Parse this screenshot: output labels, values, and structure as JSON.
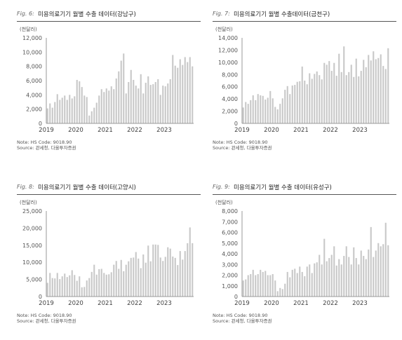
{
  "notes": {
    "note": "Note: HS Code: 9018.90",
    "source": "Source: 관세청, 다올투자증권"
  },
  "colors": {
    "bar": "#c8c8c8",
    "axis": "#999999",
    "rule": "#555555"
  },
  "chart_data": [
    {
      "type": "bar",
      "fig": "Fig. 6:",
      "title": "미용의료기기 월별 수출 데이터(강남구)",
      "unit": "(천달러)",
      "ylim": [
        0,
        12000
      ],
      "yticks": [
        "0",
        "2,000",
        "4,000",
        "6,000",
        "8,000",
        "10,000",
        "12,000"
      ],
      "xticks": [
        "2019",
        "2020",
        "2021",
        "2022",
        "2023"
      ],
      "x_start": "2019-01",
      "values": [
        2100,
        2800,
        2200,
        3000,
        4100,
        3300,
        3600,
        3900,
        3300,
        4000,
        3500,
        3800,
        6100,
        5900,
        5100,
        3900,
        3700,
        1100,
        1700,
        2200,
        2900,
        3900,
        4800,
        4400,
        4900,
        4600,
        5200,
        4800,
        6300,
        7300,
        8800,
        9800,
        4200,
        5800,
        7500,
        6100,
        5300,
        4900,
        6900,
        4200,
        5700,
        6600,
        5400,
        5500,
        5800,
        6200,
        4000,
        5300,
        5200,
        5600,
        6200,
        9600,
        8100,
        7800,
        9000,
        8200,
        9300,
        8600,
        9300,
        8000
      ]
    },
    {
      "type": "bar",
      "fig": "Fig. 7:",
      "title": "미용의료기기 월별 수출데이터(금천구)",
      "unit": "(천달러)",
      "ylim": [
        0,
        14000
      ],
      "yticks": [
        "0",
        "2,000",
        "4,000",
        "6,000",
        "8,000",
        "10,000",
        "12,000",
        "14,000"
      ],
      "xticks": [
        "2019",
        "2020",
        "2021",
        "2022",
        "2023"
      ],
      "x_start": "2019-01",
      "values": [
        2600,
        3500,
        3200,
        3800,
        4600,
        3800,
        4800,
        4600,
        4500,
        3900,
        4200,
        5300,
        4100,
        2700,
        2300,
        3200,
        4100,
        5500,
        6100,
        4800,
        6200,
        6300,
        6800,
        6900,
        9300,
        7000,
        6400,
        8200,
        7300,
        8100,
        8500,
        7900,
        7200,
        9900,
        9600,
        10200,
        8600,
        9900,
        7800,
        11400,
        8400,
        12600,
        7900,
        8400,
        9600,
        7600,
        10600,
        7700,
        8600,
        10400,
        9200,
        11200,
        10300,
        11800,
        10500,
        10700,
        11300,
        9400,
        8900,
        12300
      ]
    },
    {
      "type": "bar",
      "fig": "Fig. 8:",
      "title": "미용의료기기 월별 수출 데이터(고양시)",
      "unit": "(천달러)",
      "ylim": [
        0,
        25000
      ],
      "yticks": [
        "0",
        "5,000",
        "10,000",
        "15,000",
        "20,000",
        "25,000"
      ],
      "xticks": [
        "2019",
        "2020",
        "2021",
        "2022",
        "2023"
      ],
      "x_start": "2019-01",
      "values": [
        4000,
        6900,
        5400,
        5300,
        6900,
        5100,
        5900,
        6700,
        5700,
        6200,
        7700,
        6300,
        4600,
        5900,
        2700,
        2800,
        4700,
        5400,
        7200,
        9300,
        6400,
        8000,
        8100,
        6900,
        6400,
        6500,
        7100,
        9300,
        10400,
        8100,
        10700,
        7400,
        9300,
        10300,
        11300,
        11400,
        13000,
        11100,
        8300,
        12300,
        9900,
        14900,
        10300,
        15200,
        15200,
        15100,
        11400,
        10400,
        11600,
        14400,
        14000,
        11700,
        11300,
        9200,
        13300,
        10800,
        13300,
        15600,
        20200,
        15600
      ]
    },
    {
      "type": "bar",
      "fig": "Fig. 9:",
      "title": "미용의료기기 월별 수출 데이터(유성구)",
      "unit": "(천달러)",
      "ylim": [
        0,
        8000
      ],
      "yticks": [
        "0",
        "1,000",
        "2,000",
        "3,000",
        "4,000",
        "5,000",
        "6,000",
        "7,000",
        "8,000"
      ],
      "xticks": [
        "2019",
        "2020",
        "2021",
        "2022",
        "2023"
      ],
      "x_start": "2019-01",
      "values": [
        1500,
        1600,
        2000,
        2100,
        2500,
        2000,
        2100,
        2500,
        2300,
        2400,
        2000,
        2000,
        2100,
        1500,
        500,
        800,
        700,
        1200,
        2300,
        1800,
        2500,
        2600,
        2200,
        2800,
        2300,
        1900,
        2800,
        3000,
        2200,
        3100,
        3200,
        3900,
        3000,
        5400,
        3300,
        3600,
        3900,
        4700,
        2900,
        3500,
        3000,
        3800,
        4700,
        3700,
        3000,
        4600,
        3600,
        3000,
        4300,
        3800,
        3500,
        4400,
        6500,
        3700,
        4300,
        5000,
        4700,
        4900,
        6900,
        4800
      ]
    }
  ]
}
